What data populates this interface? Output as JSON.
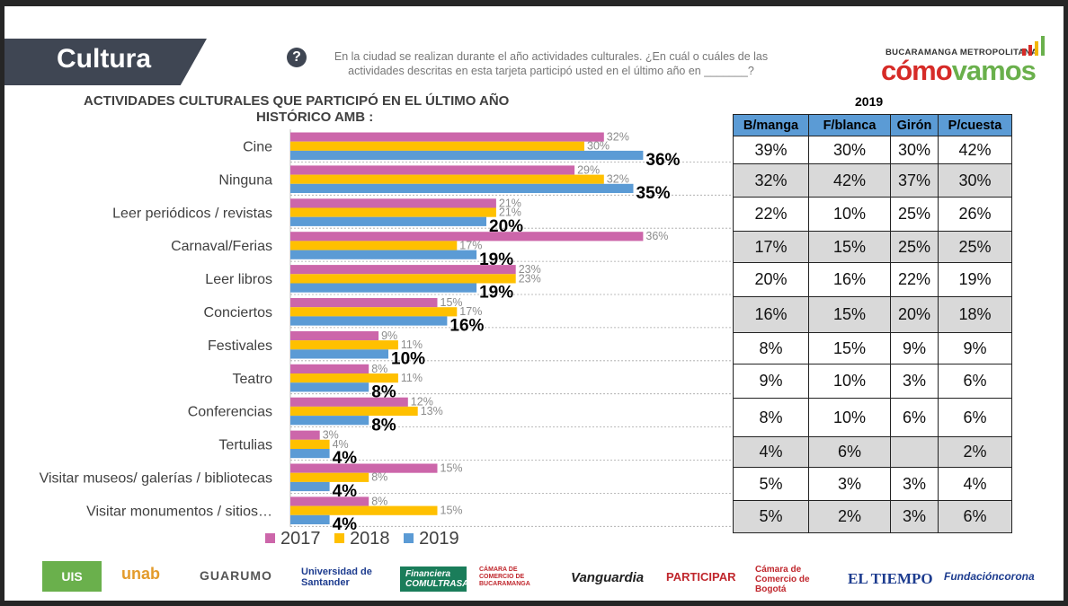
{
  "header": {
    "section_title": "Cultura",
    "question_icon": "question-circle-icon",
    "question_text_1": "En la ciudad se realizan durante el año actividades culturales. ¿En cuál o cuáles de las",
    "question_text_2": "actividades descritas en esta tarjeta participó usted en el último año en _______?",
    "brand_top": "BUCARAMANGA METROPOLITANA",
    "brand_word_a": "cómo",
    "brand_word_b": "vamos",
    "brand_colors": [
      "#d62b27",
      "#6ab04c",
      "#f2b705"
    ]
  },
  "chart_data": {
    "type": "bar",
    "orientation": "horizontal",
    "title": "ACTIVIDADES CULTURALES QUE PARTICIPÓ EN EL ÚLTIMO AÑO",
    "subtitle": "HISTÓRICO AMB :",
    "categories": [
      "Cine",
      "Ninguna",
      "Leer periódicos / revistas",
      "Carnaval/Ferias",
      "Leer libros",
      "Conciertos",
      "Festivales",
      "Teatro",
      "Conferencias",
      "Tertulias",
      "Visitar museos/ galerías / bibliotecas",
      "Visitar monumentos / sitios…"
    ],
    "series": [
      {
        "name": "2017",
        "color": "#cc66aa",
        "values": [
          32,
          29,
          21,
          36,
          23,
          15,
          9,
          8,
          12,
          3,
          15,
          8
        ],
        "labels": [
          "32%",
          "29%",
          "21%",
          "36%",
          "23%",
          "15%",
          "9%",
          "8%",
          "12%",
          "3%",
          "15%",
          "8%"
        ]
      },
      {
        "name": "2018",
        "color": "#ffc000",
        "values": [
          30,
          32,
          21,
          17,
          23,
          17,
          11,
          11,
          13,
          4,
          8,
          15
        ],
        "labels": [
          "30%",
          "32%",
          "21%",
          "17%",
          "23%",
          "17%",
          "11%",
          "11%",
          "13%",
          "4%",
          "8%",
          "15%"
        ]
      },
      {
        "name": "2019",
        "color": "#5b9bd5",
        "values": [
          36,
          35,
          20,
          19,
          19,
          16,
          10,
          8,
          8,
          4,
          4,
          4
        ],
        "labels": [
          "36%",
          "35%",
          "20%",
          "19%",
          "19%",
          "16%",
          "10%",
          "8%",
          "8%",
          "4%",
          "4%",
          "4%"
        ]
      }
    ]
  },
  "table": {
    "year": "2019",
    "headers": [
      "B/manga",
      "F/blanca",
      "Girón",
      "P/cuesta"
    ],
    "rows": [
      [
        "39%",
        "30%",
        "30%",
        "42%"
      ],
      [
        "32%",
        "42%",
        "37%",
        "30%"
      ],
      [
        "22%",
        "10%",
        "25%",
        "26%"
      ],
      [
        "17%",
        "15%",
        "25%",
        "25%"
      ],
      [
        "20%",
        "16%",
        "22%",
        "19%"
      ],
      [
        "16%",
        "15%",
        "20%",
        "18%"
      ],
      [
        "8%",
        "15%",
        "9%",
        "9%"
      ],
      [
        "9%",
        "10%",
        "3%",
        "6%"
      ],
      [
        "8%",
        "10%",
        "6%",
        "6%"
      ],
      [
        "4%",
        "6%",
        "",
        "2%"
      ],
      [
        "5%",
        "3%",
        "3%",
        "4%"
      ],
      [
        "5%",
        "2%",
        "3%",
        "6%"
      ]
    ],
    "shading": [
      "w",
      "g",
      "w",
      "g",
      "w",
      "g",
      "w",
      "w",
      "w",
      "g",
      "w",
      "g"
    ]
  },
  "legend": [
    "2017",
    "2018",
    "2019"
  ],
  "footer": {
    "logos": [
      {
        "name": "logo-uis",
        "text": "UIS"
      },
      {
        "name": "logo-unab",
        "text": "unab"
      },
      {
        "name": "logo-guarumo",
        "text": "GUARUMO"
      },
      {
        "name": "logo-universidad-de-santander",
        "text": "Universidad de Santander"
      },
      {
        "name": "logo-financiera-comultrasan",
        "text": "Financiera COMULTRASAN"
      },
      {
        "name": "logo-camara-comercio-bucaramanga",
        "text": "CÁMARA DE COMERCIO DE BUCARAMANGA"
      },
      {
        "name": "logo-vanguardia",
        "text": "Vanguardia"
      },
      {
        "name": "logo-participar",
        "text": "PARTICIPAR"
      },
      {
        "name": "logo-camara-comercio-bogota",
        "text": "Cámara de Comercio de Bogotá"
      },
      {
        "name": "logo-el-tiempo",
        "text": "EL TIEMPO"
      },
      {
        "name": "logo-fundacion-corona",
        "text": "Fundacióncorona"
      }
    ]
  }
}
